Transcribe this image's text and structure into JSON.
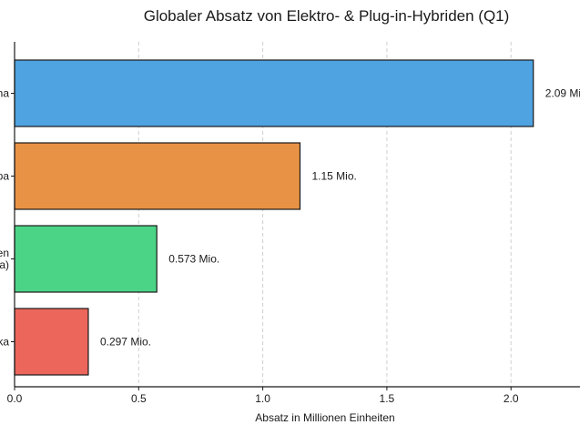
{
  "chart_data": {
    "type": "bar",
    "orientation": "horizontal",
    "title": "Globaler Absatz von Elektro- & Plug-in-Hybriden (Q1)",
    "xlabel": "Absatz in Millionen Einheiten",
    "ylabel": "",
    "xlim": [
      0,
      2.3
    ],
    "xticks": [
      0.0,
      0.5,
      1.0,
      1.5,
      2.0
    ],
    "xtick_labels": [
      "0.0",
      "0.5",
      "1.0",
      "1.5",
      "2.0"
    ],
    "grid": "vertical-dashed",
    "categories": [
      {
        "label_lines": [
          "na"
        ],
        "value": 2.09,
        "value_label": "2.09 Mi",
        "color": "#4fa3e0"
      },
      {
        "label_lines": [
          "pa"
        ],
        "value": 1.15,
        "value_label": "1.15 Mio.",
        "color": "#e89245"
      },
      {
        "label_lines": [
          "en",
          "a)"
        ],
        "value": 0.573,
        "value_label": "0.573 Mio.",
        "color": "#4cd486"
      },
      {
        "label_lines": [
          "ka"
        ],
        "value": 0.297,
        "value_label": "0.297 Mio.",
        "color": "#ec665b"
      }
    ]
  }
}
